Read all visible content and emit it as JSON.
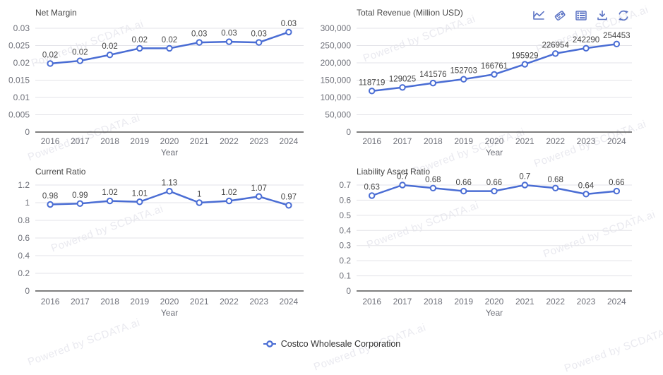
{
  "watermark": {
    "text": "Powered by SCDATA.ai",
    "color": "rgba(100,102,145,0.14)"
  },
  "legend": {
    "label": "Costco Wholesale Corporation"
  },
  "toolbar": {
    "icons": [
      "line-chart-icon",
      "tag-icon",
      "table-icon",
      "download-icon",
      "refresh-icon"
    ]
  },
  "colors": {
    "series_line": "#4a6dd4",
    "marker_fill": "#ffffff",
    "grid_line": "#e3e3e8",
    "axis_line": "#333333",
    "tick_label": "#6e7079",
    "chart_title": "#464646",
    "data_label": "#464646",
    "toolbar_icon": "#5b73c4",
    "legend_text": "#333333"
  },
  "chart_data": [
    {
      "type": "line",
      "title": "Net Margin",
      "xlabel": "Year",
      "series_name": "Costco Wholesale Corporation",
      "categories": [
        "2016",
        "2017",
        "2018",
        "2019",
        "2020",
        "2021",
        "2022",
        "2023",
        "2024"
      ],
      "values": [
        0.0198,
        0.0206,
        0.0223,
        0.0242,
        0.0242,
        0.0259,
        0.0261,
        0.0259,
        0.0289
      ],
      "point_labels": [
        "0.02",
        "0.02",
        "0.02",
        "0.02",
        "0.02",
        "0.03",
        "0.03",
        "0.03",
        "0.03"
      ],
      "ylim": [
        0,
        0.03
      ],
      "ytick_labels": [
        "0",
        "0.005",
        "0.01",
        "0.015",
        "0.02",
        "0.025",
        "0.03"
      ],
      "grid": true,
      "legend_position": "bottom"
    },
    {
      "type": "line",
      "title": "Total Revenue (Million USD)",
      "xlabel": "Year",
      "series_name": "Costco Wholesale Corporation",
      "categories": [
        "2016",
        "2017",
        "2018",
        "2019",
        "2020",
        "2021",
        "2022",
        "2023",
        "2024"
      ],
      "values": [
        118719,
        129025,
        141576,
        152703,
        166761,
        195929,
        226954,
        242290,
        254453
      ],
      "point_labels": [
        "118719",
        "129025",
        "141576",
        "152703",
        "166761",
        "195929",
        "226954",
        "242290",
        "254453"
      ],
      "ylim": [
        0,
        300000
      ],
      "ytick_labels": [
        "0",
        "50,000",
        "100,000",
        "150,000",
        "200,000",
        "250,000",
        "300,000"
      ],
      "grid": true,
      "legend_position": "bottom"
    },
    {
      "type": "line",
      "title": "Current Ratio",
      "xlabel": "Year",
      "series_name": "Costco Wholesale Corporation",
      "categories": [
        "2016",
        "2017",
        "2018",
        "2019",
        "2020",
        "2021",
        "2022",
        "2023",
        "2024"
      ],
      "values": [
        0.98,
        0.99,
        1.02,
        1.01,
        1.13,
        1.0,
        1.02,
        1.07,
        0.97
      ],
      "point_labels": [
        "0.98",
        "0.99",
        "1.02",
        "1.01",
        "1.13",
        "1",
        "1.02",
        "1.07",
        "0.97"
      ],
      "ylim": [
        0,
        1.2
      ],
      "ytick_labels": [
        "0",
        "0.2",
        "0.4",
        "0.6",
        "0.8",
        "1",
        "1.2"
      ],
      "grid": true,
      "legend_position": "bottom"
    },
    {
      "type": "line",
      "title": "Liability Asset Ratio",
      "xlabel": "Year",
      "series_name": "Costco Wholesale Corporation",
      "categories": [
        "2016",
        "2017",
        "2018",
        "2019",
        "2020",
        "2021",
        "2022",
        "2023",
        "2024"
      ],
      "values": [
        0.63,
        0.7,
        0.68,
        0.66,
        0.66,
        0.7,
        0.68,
        0.64,
        0.66
      ],
      "point_labels": [
        "0.63",
        "0.7",
        "0.68",
        "0.66",
        "0.66",
        "0.7",
        "0.68",
        "0.64",
        "0.66"
      ],
      "ylim": [
        0,
        0.7
      ],
      "ytick_labels": [
        "0",
        "0.1",
        "0.2",
        "0.3",
        "0.4",
        "0.5",
        "0.6",
        "0.7"
      ],
      "grid": true,
      "legend_position": "bottom"
    }
  ]
}
